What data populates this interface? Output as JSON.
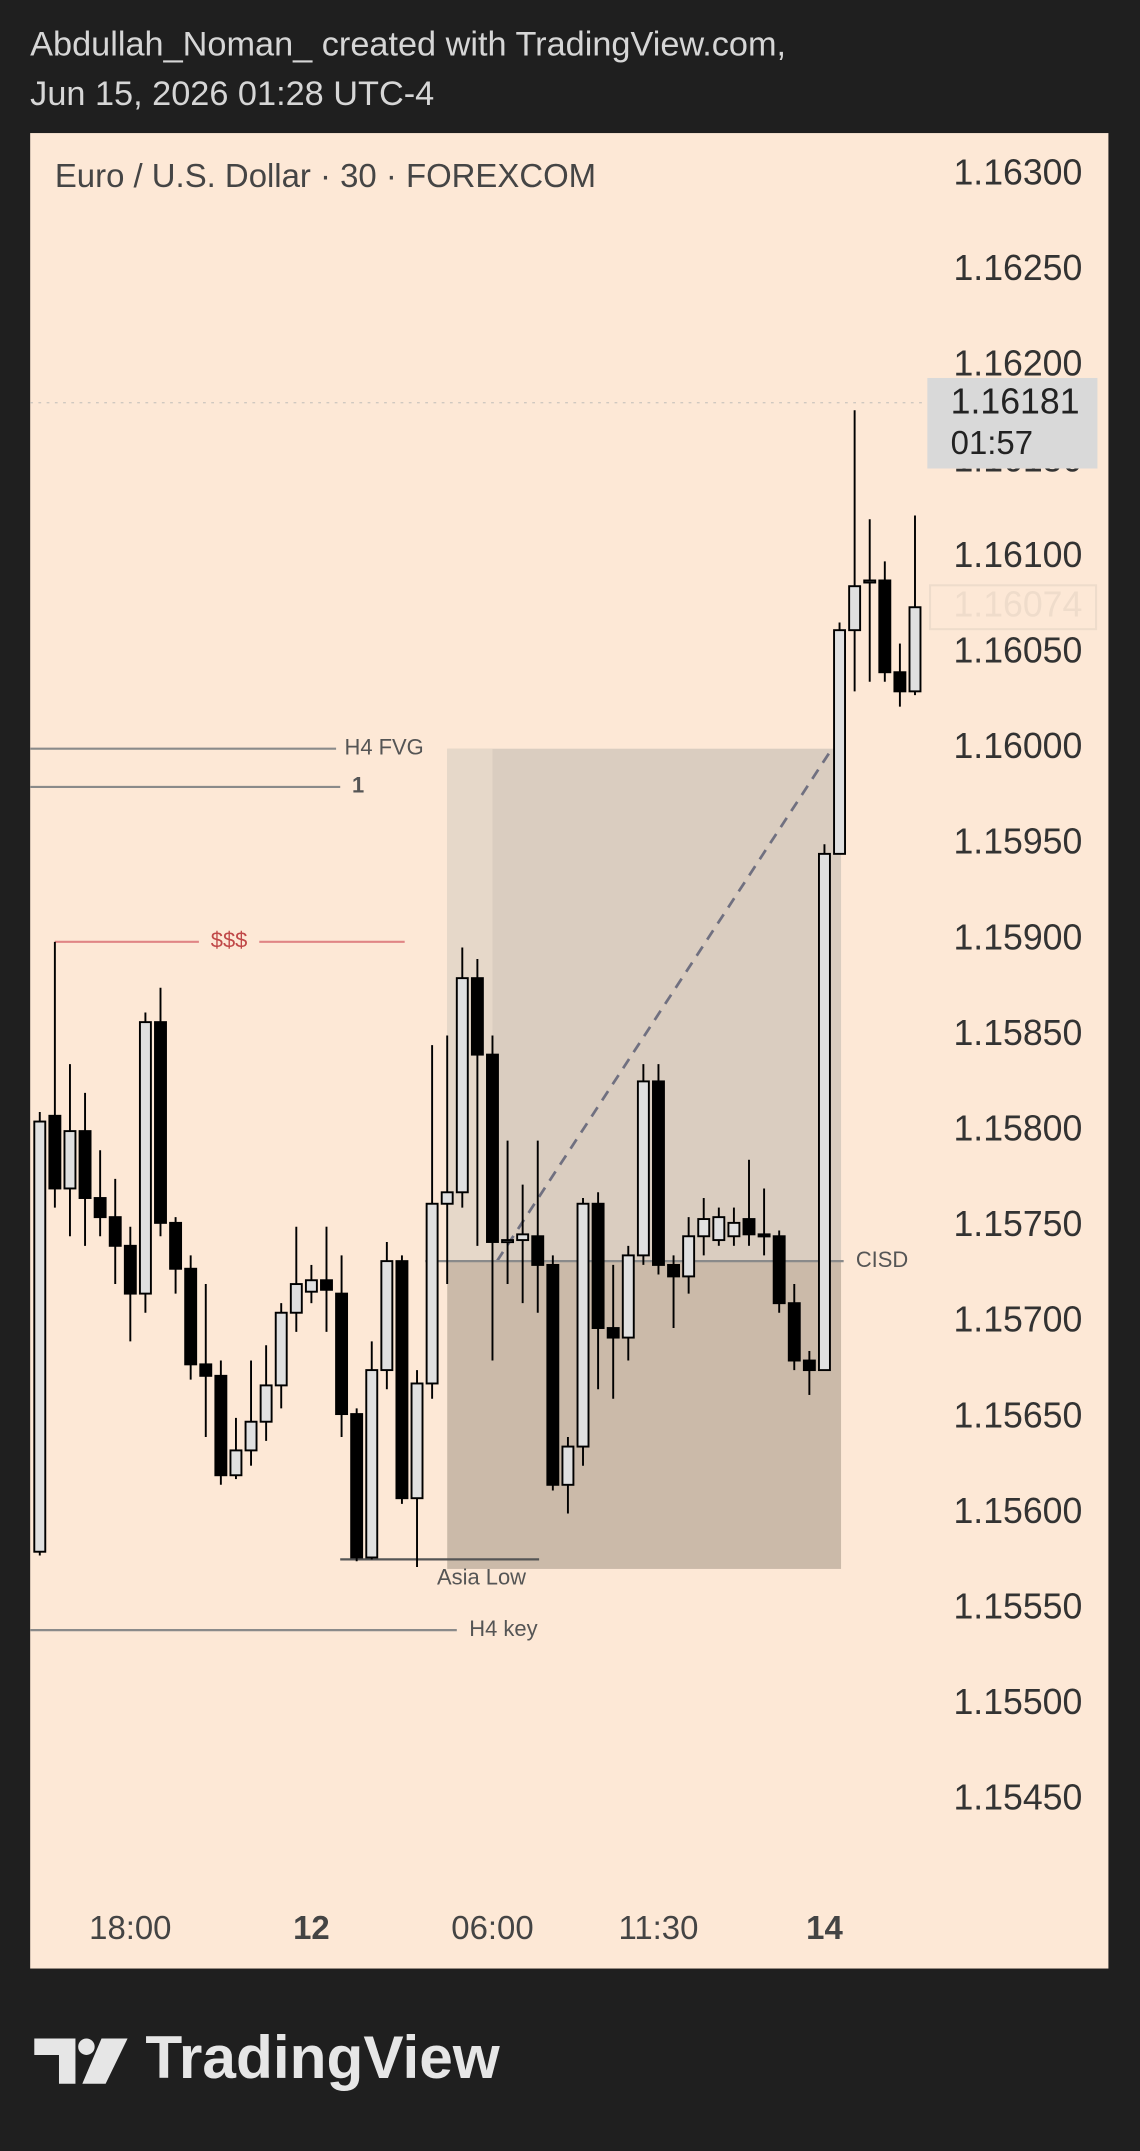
{
  "header": [
    "Abdullah_Noman_ created with TradingView.com,",
    "Jun 15, 2026 01:28 UTC-4"
  ],
  "footer": "TradingView",
  "chart_data": {
    "type": "candlestick",
    "title": "Euro / U.S. Dollar · 30 · FOREXCOM",
    "up_color": "#e0e0e0",
    "down_color": "#000000",
    "categories": [
      null,
      null,
      null,
      null,
      null,
      null,
      "18:00",
      null,
      null,
      null,
      null,
      null,
      null,
      null,
      null,
      null,
      null,
      null,
      "12",
      null,
      null,
      null,
      null,
      null,
      null,
      null,
      null,
      null,
      null,
      null,
      "06:00",
      null,
      null,
      null,
      null,
      null,
      null,
      null,
      null,
      null,
      null,
      "11:30",
      null,
      null,
      null,
      null,
      null,
      null,
      null,
      null,
      null,
      null,
      "14",
      null,
      null,
      null,
      null,
      null,
      null
    ],
    "open": [
      1.1558,
      1.15808,
      1.1577,
      1.158,
      1.15765,
      1.15755,
      1.1574,
      1.15715,
      1.15857,
      1.15752,
      1.15728,
      1.15678,
      1.15672,
      1.1562,
      1.15633,
      1.15648,
      1.15667,
      1.15705,
      1.15716,
      1.15722,
      1.15715,
      1.15652,
      1.15577,
      1.15675,
      1.15732,
      1.15608,
      1.15668,
      1.15762,
      1.15768,
      1.1588,
      1.1584,
      1.15743,
      1.15743,
      1.15745,
      1.1573,
      1.15615,
      1.15635,
      1.15762,
      1.15697,
      1.15692,
      1.15735,
      1.15826,
      1.1573,
      1.15724,
      1.15745,
      1.15743,
      1.15745,
      1.15754,
      1.15746,
      1.15745,
      1.1571,
      1.1568,
      1.15675,
      1.15945,
      1.16062,
      1.16087,
      1.16088,
      1.1604,
      1.1603
    ],
    "high": [
      1.1581,
      1.15899,
      1.15835,
      1.1582,
      1.1579,
      1.15775,
      1.1575,
      1.15862,
      1.15875,
      1.15755,
      1.15735,
      1.1572,
      1.1568,
      1.1565,
      1.1568,
      1.15688,
      1.1571,
      1.1575,
      1.1573,
      1.1575,
      1.15735,
      1.15655,
      1.1569,
      1.15742,
      1.15735,
      1.15675,
      1.15845,
      1.1585,
      1.15896,
      1.1589,
      1.1585,
      1.15795,
      1.15772,
      1.15795,
      1.15735,
      1.1564,
      1.15765,
      1.15768,
      1.1573,
      1.1574,
      1.15835,
      1.15835,
      1.15735,
      1.15755,
      1.15765,
      1.1576,
      1.1576,
      1.15785,
      1.1577,
      1.15748,
      1.1572,
      1.15685,
      1.1595,
      1.16066,
      1.16177,
      1.1612,
      1.16098,
      1.16055,
      1.16122
    ],
    "low": [
      1.15578,
      1.1576,
      1.15745,
      1.1574,
      1.15745,
      1.1572,
      1.1569,
      1.15705,
      1.15745,
      1.15715,
      1.1567,
      1.1564,
      1.15615,
      1.15618,
      1.15625,
      1.15638,
      1.15655,
      1.15695,
      1.1571,
      1.15695,
      1.1564,
      1.15575,
      1.15576,
      1.15665,
      1.15605,
      1.15572,
      1.1566,
      1.1572,
      1.1576,
      1.1574,
      1.1568,
      1.1572,
      1.1571,
      1.15705,
      1.15612,
      1.156,
      1.15625,
      1.15665,
      1.1566,
      1.1568,
      1.1573,
      1.15725,
      1.15697,
      1.15715,
      1.15735,
      1.1574,
      1.1574,
      1.1574,
      1.15735,
      1.15705,
      1.15675,
      1.15662,
      1.15675,
      1.15945,
      1.1603,
      1.16035,
      1.16035,
      1.16022,
      1.16028
    ],
    "close": [
      1.15805,
      1.1577,
      1.158,
      1.15765,
      1.15755,
      1.1574,
      1.15715,
      1.15857,
      1.15752,
      1.15728,
      1.15678,
      1.15672,
      1.1562,
      1.15633,
      1.15648,
      1.15667,
      1.15705,
      1.1572,
      1.15722,
      1.15717,
      1.15652,
      1.15577,
      1.15675,
      1.15732,
      1.15608,
      1.15668,
      1.15762,
      1.15768,
      1.1588,
      1.1584,
      1.15742,
      1.15743,
      1.15746,
      1.1573,
      1.15615,
      1.15635,
      1.15762,
      1.15697,
      1.15692,
      1.15735,
      1.15826,
      1.1573,
      1.15724,
      1.15745,
      1.15754,
      1.15755,
      1.15752,
      1.15746,
      1.15745,
      1.1571,
      1.1568,
      1.15675,
      1.15945,
      1.16062,
      1.16085,
      1.16088,
      1.1604,
      1.1603,
      1.16074
    ],
    "ylim": [
      1.15362,
      1.16322
    ],
    "yticks": [
      {
        "value": 1.163,
        "label": "1.16300"
      },
      {
        "value": 1.1625,
        "label": "1.16250"
      },
      {
        "value": 1.162,
        "label": "1.16200"
      },
      {
        "value": 1.1615,
        "label": "1.16150"
      },
      {
        "value": 1.161,
        "label": "1.16100"
      },
      {
        "value": 1.1605,
        "label": "1.16050"
      },
      {
        "value": 1.16,
        "label": "1.16000"
      },
      {
        "value": 1.1595,
        "label": "1.15950"
      },
      {
        "value": 1.159,
        "label": "1.15900"
      },
      {
        "value": 1.1585,
        "label": "1.15850"
      },
      {
        "value": 1.158,
        "label": "1.15800"
      },
      {
        "value": 1.1575,
        "label": "1.15750"
      },
      {
        "value": 1.157,
        "label": "1.15700"
      },
      {
        "value": 1.1565,
        "label": "1.15650"
      },
      {
        "value": 1.156,
        "label": "1.15600"
      },
      {
        "value": 1.1555,
        "label": "1.15550"
      },
      {
        "value": 1.155,
        "label": "1.15500"
      },
      {
        "value": 1.1545,
        "label": "1.15450"
      }
    ],
    "grid": false,
    "current_price": 1.16181,
    "countdown": "01:57",
    "levels": [
      {
        "label": "H4 FVG",
        "value": 1.16
      },
      {
        "label": "1",
        "value": 1.1598
      },
      {
        "label": "$$$",
        "value": 1.15899
      },
      {
        "label": "CISD",
        "value": 1.15732
      },
      {
        "label": "Asia Low",
        "value": 1.15576
      },
      {
        "label": "H4 key",
        "value": 1.15539
      }
    ],
    "range_box": {
      "top": 1.16,
      "entry": 1.15732,
      "bottom": 1.15571
    }
  }
}
